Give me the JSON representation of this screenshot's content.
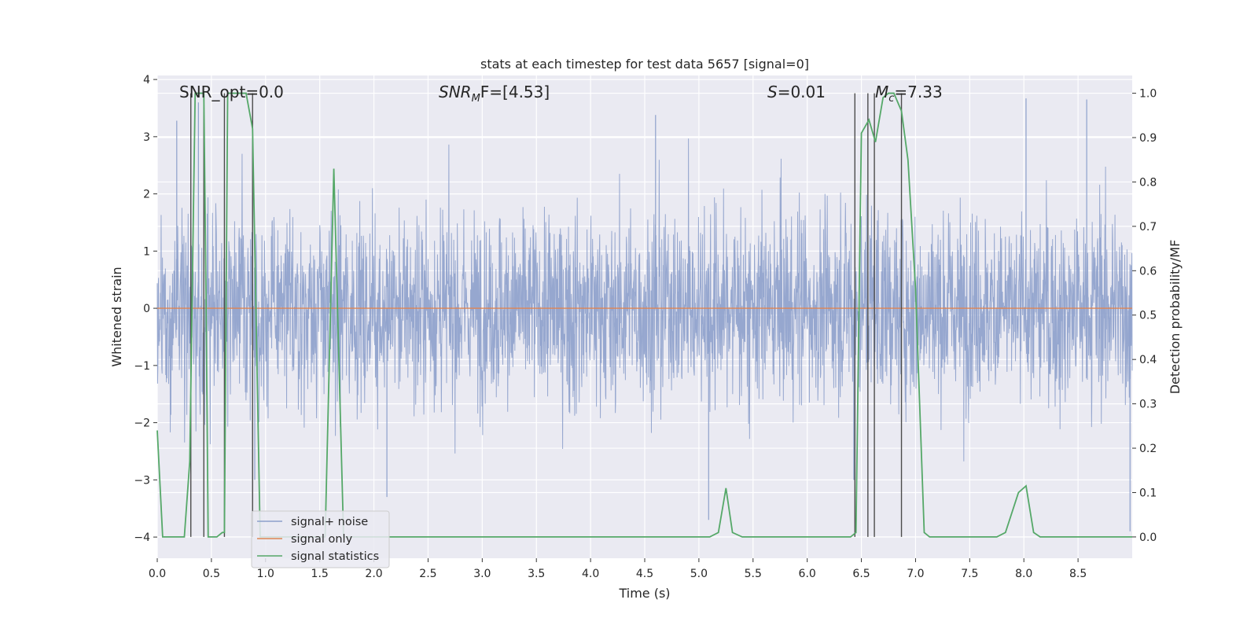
{
  "chart_data": {
    "type": "line",
    "title": "stats at each timestep for test data 5657 [signal=0]",
    "xlabel": "Time (s)",
    "ylabel_left": "Whitened strain",
    "ylabel_right": "Detection probability/MF",
    "xlim": [
      0.0,
      9.0
    ],
    "ylim_left": [
      -4.37,
      4.07
    ],
    "ylim_right": [
      -0.048,
      1.04
    ],
    "x_ticks": [
      "0.0",
      "0.5",
      "1.0",
      "1.5",
      "2.0",
      "2.5",
      "3.0",
      "3.5",
      "4.0",
      "4.5",
      "5.0",
      "5.5",
      "6.0",
      "6.5",
      "7.0",
      "7.5",
      "8.0",
      "8.5"
    ],
    "y_left_ticks": [
      "4",
      "3",
      "2",
      "1",
      "0",
      "−1",
      "−2",
      "−3",
      "−4"
    ],
    "y_right_ticks": [
      "1.0",
      "0.9",
      "0.8",
      "0.7",
      "0.6",
      "0.5",
      "0.4",
      "0.3",
      "0.2",
      "0.1",
      "0.0"
    ],
    "grid": true,
    "legend_position": "lower-left",
    "annotations": {
      "snr_opt": "SNR_opt=0.0",
      "snr_mf_label": "SNR",
      "snr_mf_sub": "M",
      "snr_mf_rest": "F=[4.53]",
      "s_label": "S",
      "s_rest": "=0.01",
      "mc_label": "M",
      "mc_sub": "c",
      "mc_rest": "=7.33"
    },
    "series": [
      {
        "name": "signal+ noise",
        "axis": "left",
        "color": "#8da0cb",
        "description": "dense whitened strain noise, roughly within ±2.5 with spikes to about ±3.4",
        "peak_spikes": [
          {
            "x": 0.18,
            "y": 3.28
          },
          {
            "x": 0.38,
            "y": 3.6
          },
          {
            "x": 0.9,
            "y": -3.0
          },
          {
            "x": 2.12,
            "y": -3.3
          },
          {
            "x": 4.6,
            "y": 3.38
          },
          {
            "x": 5.09,
            "y": -3.7
          },
          {
            "x": 6.43,
            "y": -3.0
          },
          {
            "x": 8.02,
            "y": 3.67
          },
          {
            "x": 8.58,
            "y": 3.65
          },
          {
            "x": 8.98,
            "y": -3.9
          }
        ]
      },
      {
        "name": "signal only",
        "axis": "left",
        "color": "#dd8452",
        "x": [
          0.0,
          9.0
        ],
        "y": [
          0.0,
          0.0
        ]
      },
      {
        "name": "signal statistics",
        "axis": "right",
        "color": "#55a868",
        "x": [
          0.0,
          0.05,
          0.25,
          0.3,
          0.35,
          0.4,
          0.43,
          0.45,
          0.47,
          0.5,
          0.55,
          0.6,
          0.62,
          0.65,
          0.68,
          0.72,
          0.75,
          0.82,
          0.88,
          0.95,
          1.0,
          1.55,
          1.63,
          1.72,
          1.8,
          5.1,
          5.18,
          5.25,
          5.31,
          5.4,
          6.4,
          6.45,
          6.5,
          6.57,
          6.63,
          6.7,
          6.75,
          6.8,
          6.87,
          6.93,
          7.0,
          7.08,
          7.13,
          7.75,
          7.83,
          7.95,
          8.02,
          8.09,
          8.15,
          9.0
        ],
        "y": [
          0.24,
          0.0,
          0.0,
          0.17,
          1.0,
          1.0,
          1.0,
          0.55,
          0.0,
          0.0,
          0.0,
          0.01,
          0.01,
          1.0,
          1.0,
          1.0,
          1.0,
          1.0,
          0.92,
          0.0,
          0.0,
          0.0,
          0.83,
          0.0,
          0.0,
          0.0,
          0.01,
          0.11,
          0.01,
          0.0,
          0.0,
          0.01,
          0.91,
          0.94,
          0.89,
          0.99,
          1.0,
          1.0,
          0.96,
          0.85,
          0.56,
          0.01,
          0.0,
          0.0,
          0.01,
          0.1,
          0.115,
          0.01,
          0.0,
          0.0
        ]
      }
    ],
    "marker_lines_x": [
      0.31,
      0.43,
      0.62,
      0.88,
      6.44,
      6.56,
      6.62,
      6.87
    ]
  }
}
